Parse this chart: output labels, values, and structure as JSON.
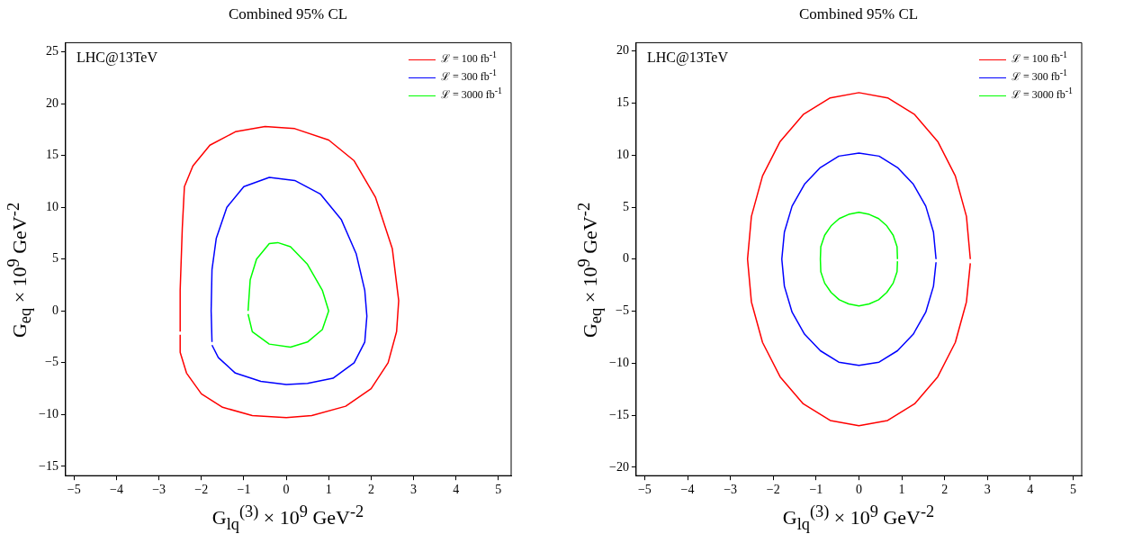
{
  "chart_data": [
    {
      "type": "line",
      "title": "Combined 95% CL",
      "xlabel": "G$_{lq}$$^{(3)}$ × 10$^{9}$ GeV$^{-2}$",
      "ylabel": "G$_{eq}$ × 10$^{9}$ GeV$^{-2}$",
      "annotations": [
        "LHC@13TeV"
      ],
      "xlim": [
        -5.2,
        5.3
      ],
      "ylim": [
        -15.9,
        25.9
      ],
      "xticks": [
        -5,
        -4,
        -3,
        -2,
        -1,
        0,
        1,
        2,
        3,
        4,
        5
      ],
      "yticks": [
        -15,
        -10,
        -5,
        0,
        5,
        10,
        15,
        20,
        25
      ],
      "legend": "top right",
      "marker": "none",
      "line_style": "solid",
      "grid": false,
      "series": [
        {
          "name": "ℒ = 100 fb$^{-1}$",
          "color": "#ff0000",
          "x": [
            -2.5,
            -2.5,
            -2.45,
            -2.4,
            -2.2,
            -1.8,
            -1.2,
            -0.5,
            0.2,
            1,
            1.6,
            2.1,
            2.5,
            2.65,
            2.6,
            2.4,
            2,
            1.4,
            0.6,
            0,
            -0.8,
            -1.5,
            -2,
            -2.35,
            -2.5,
            -2.5
          ],
          "values": [
            -2,
            2,
            8,
            12,
            14,
            16,
            17.3,
            17.8,
            17.6,
            16.5,
            14.5,
            11,
            6,
            1,
            -2,
            -5,
            -7.5,
            -9.2,
            -10.1,
            -10.3,
            -10.1,
            -9.3,
            -8,
            -6,
            -4,
            -2.3
          ]
        },
        {
          "name": "ℒ = 300 fb$^{-1}$",
          "color": "#0000ff",
          "x": [
            -1.75,
            -1.77,
            -1.75,
            -1.65,
            -1.4,
            -1,
            -0.4,
            0.2,
            0.8,
            1.3,
            1.65,
            1.85,
            1.9,
            1.85,
            1.6,
            1.1,
            0.5,
            0,
            -0.6,
            -1.2,
            -1.6,
            -1.75
          ],
          "values": [
            -3,
            0,
            4,
            7,
            10,
            12,
            12.9,
            12.6,
            11.3,
            8.8,
            5.5,
            2,
            -0.5,
            -3,
            -5,
            -6.5,
            -7,
            -7.1,
            -6.8,
            -6,
            -4.5,
            -3.3
          ]
        },
        {
          "name": "ℒ = 3000 fb$^{-1}$",
          "color": "#00ff00",
          "x": [
            -0.9,
            -0.85,
            -0.7,
            -0.4,
            -0.2,
            0.1,
            0.5,
            0.85,
            1,
            0.85,
            0.5,
            0.1,
            -0.4,
            -0.8,
            -0.9
          ],
          "values": [
            0,
            3,
            5,
            6.5,
            6.6,
            6.2,
            4.5,
            2,
            0,
            -1.8,
            -3,
            -3.5,
            -3.2,
            -2,
            -0.3
          ]
        }
      ]
    },
    {
      "type": "line",
      "title": "Combined 95% CL",
      "xlabel": "G$_{lq}$$^{(3)}$ × 10$^{9}$ GeV$^{-2}$",
      "ylabel": "G$_{eq}$ × 10$^{9}$ GeV$^{-2}$",
      "annotations": [
        "LHC@13TeV"
      ],
      "xlim": [
        -5.2,
        5.2
      ],
      "ylim": [
        -20.8,
        20.8
      ],
      "xticks": [
        -5,
        -4,
        -3,
        -2,
        -1,
        0,
        1,
        2,
        3,
        4,
        5
      ],
      "yticks": [
        -20,
        -15,
        -10,
        -5,
        0,
        5,
        10,
        15,
        20
      ],
      "legend": "top right",
      "marker": "none",
      "line_style": "solid",
      "grid": false,
      "series": [
        {
          "name": "ℒ = 100 fb$^{-1}$",
          "color": "#ff0000",
          "x": [
            2.6,
            2.51,
            2.25,
            1.84,
            1.3,
            0.67,
            0,
            -0.67,
            -1.3,
            -1.84,
            -2.25,
            -2.51,
            -2.6,
            -2.51,
            -2.25,
            -1.84,
            -1.3,
            -0.67,
            0,
            0.67,
            1.3,
            1.84,
            2.25,
            2.51,
            2.6
          ],
          "values": [
            0,
            4.1,
            8,
            11.3,
            13.9,
            15.5,
            16,
            15.5,
            13.9,
            11.3,
            8,
            4.1,
            0,
            -4.1,
            -8,
            -11.3,
            -13.9,
            -15.5,
            -16,
            -15.5,
            -13.9,
            -11.3,
            -8,
            -4.1,
            -0.4
          ]
        },
        {
          "name": "ℒ = 300 fb$^{-1}$",
          "color": "#0000ff",
          "x": [
            1.8,
            1.74,
            1.56,
            1.27,
            0.9,
            0.47,
            0,
            -0.47,
            -0.9,
            -1.27,
            -1.56,
            -1.74,
            -1.8,
            -1.74,
            -1.56,
            -1.27,
            -0.9,
            -0.47,
            0,
            0.47,
            0.9,
            1.27,
            1.56,
            1.74,
            1.8
          ],
          "values": [
            0,
            2.6,
            5.1,
            7.2,
            8.8,
            9.9,
            10.2,
            9.9,
            8.8,
            7.2,
            5.1,
            2.6,
            0,
            -2.6,
            -5.1,
            -7.2,
            -8.8,
            -9.9,
            -10.2,
            -9.9,
            -8.8,
            -7.2,
            -5.1,
            -2.6,
            -0.3
          ]
        },
        {
          "name": "ℒ = 3000 fb$^{-1}$",
          "color": "#00ff00",
          "x": [
            0.9,
            0.89,
            0.8,
            0.65,
            0.46,
            0.24,
            0,
            -0.24,
            -0.46,
            -0.65,
            -0.8,
            -0.89,
            -0.9,
            -0.89,
            -0.8,
            -0.65,
            -0.46,
            -0.24,
            0,
            0.24,
            0.46,
            0.65,
            0.8,
            0.89,
            0.9
          ],
          "values": [
            0,
            1.2,
            2.3,
            3.2,
            3.9,
            4.3,
            4.5,
            4.3,
            3.9,
            3.2,
            2.3,
            1.2,
            0,
            -1.2,
            -2.3,
            -3.2,
            -3.9,
            -4.3,
            -4.5,
            -4.3,
            -3.9,
            -3.2,
            -2.3,
            -1.2,
            -0.2
          ]
        }
      ]
    }
  ]
}
